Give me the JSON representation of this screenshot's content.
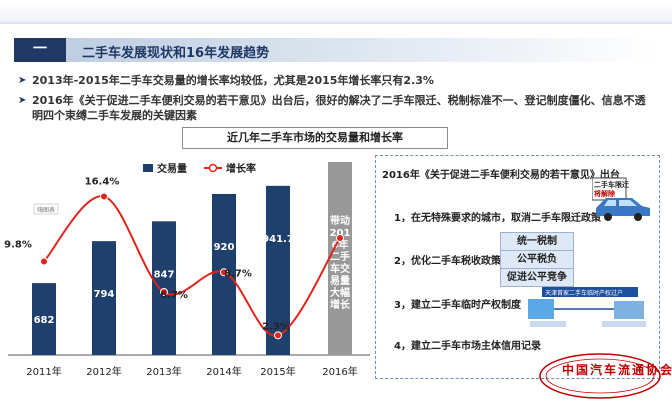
{
  "header": {
    "number": "一",
    "title": "二手车发展现状和16年发展趋势"
  },
  "bullets": [
    {
      "text": "2013年-2015年二手车交易量的增长率均较低，尤其是2015年增长率只有2.3%"
    },
    {
      "line1": "2016年《关于促进二手车便利交易的若干意见》出台后，很好的解决了二手车限迁、税制标准不一、登记制度僵化、信息不透",
      "line2": "明四个束缚二手车发展的关键因素"
    }
  ],
  "chart_title": "近几年二手车市场的交易量和增长率",
  "chart_data": {
    "type": "bar",
    "title": "近几年二手车市场的交易量和增长率",
    "categories": [
      "2011年",
      "2012年",
      "2013年",
      "2014年",
      "2015年",
      "2016年"
    ],
    "series": [
      {
        "name": "交易量",
        "type": "bar",
        "values": [
          682,
          794,
          847,
          920,
          941.7,
          null
        ],
        "labels": [
          "682",
          "794",
          "847",
          "920",
          "941.7",
          ""
        ]
      },
      {
        "name": "增长率",
        "type": "line",
        "values": [
          9.8,
          16.4,
          6.7,
          8.7,
          2.3,
          null
        ],
        "labels": [
          "9.8%",
          "16.4%",
          "6.7%",
          "8.7%",
          "2.3%",
          ""
        ]
      }
    ],
    "forecast_2016": {
      "label": "带动2016年二手车交易量大幅增长"
    },
    "legend": [
      "交易量",
      "增长率"
    ],
    "legend_position": "top-center",
    "small_label": "嗨图表",
    "colors": {
      "bar": "#1f3f6d",
      "line": "#e0241b",
      "forecast_bar": "#999999"
    }
  },
  "policy": {
    "title": "2016年《关于促进二手车便利交易的若干意见》出台",
    "items": [
      "1，在无特殊要求的城市，取消二手车限迁政策",
      "2，优化二手车税收政策",
      "3，建立二手车临时产权制度",
      "4，建立二手车市场主体信用记录"
    ],
    "tags": [
      "统一税制",
      "公平税负",
      "促进公平竞争"
    ],
    "car_label_1": "二手车限迁",
    "car_label_2": "将解除",
    "diagram_label": "天津首家二手车临时产权过户",
    "seal_text": "中国汽车流通协会"
  }
}
